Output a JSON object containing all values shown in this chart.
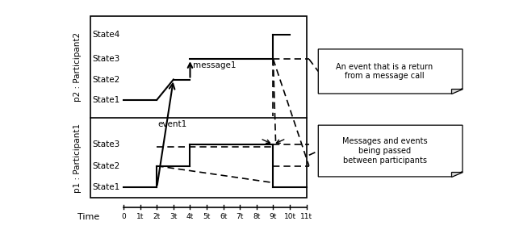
{
  "fig_width": 6.38,
  "fig_height": 2.9,
  "dpi": 100,
  "bg_color": "#ffffff",
  "p2_states": [
    "State1",
    "State2",
    "State3",
    "State4"
  ],
  "p1_states": [
    "State1",
    "State2",
    "State3"
  ],
  "p2_label": "p2 : Participant2",
  "p1_label": "p1 : Participant1",
  "time_label": "Time",
  "time_labels": [
    "0",
    "1t",
    "2t",
    "3t",
    "4t",
    "5t",
    "6t",
    "7t",
    "8t",
    "9t",
    "10t",
    "11t"
  ],
  "time_values": [
    0,
    1,
    2,
    3,
    4,
    5,
    6,
    7,
    8,
    9,
    10,
    11
  ],
  "message1_label": "message1",
  "event1_label": "event1",
  "note1_text": "An event that is a return\nfrom a message call",
  "note2_text": "Messages and events\nbeing passed\nbetween participants"
}
